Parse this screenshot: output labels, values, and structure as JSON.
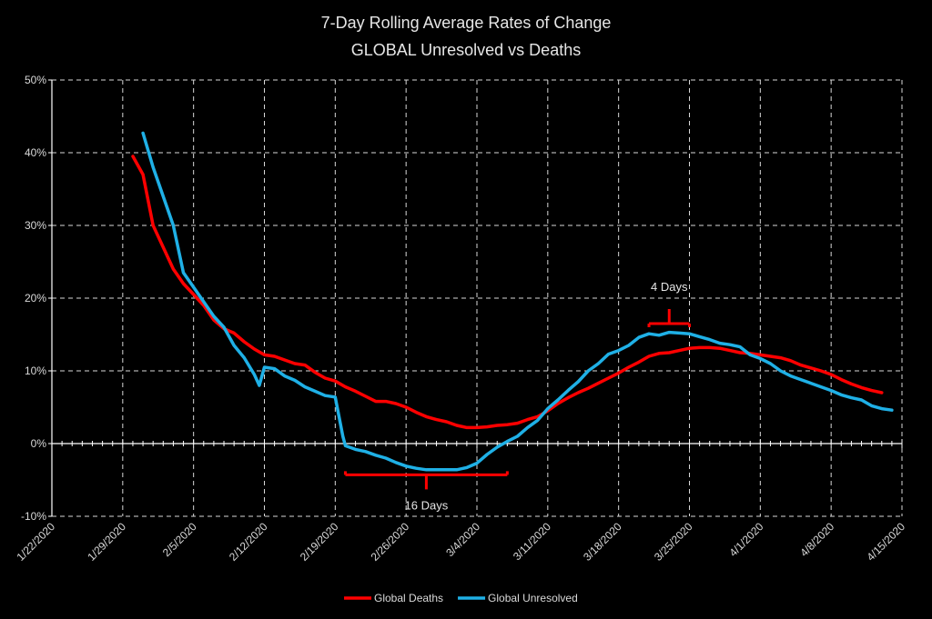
{
  "chart_data": {
    "type": "line",
    "title": "7-Day Rolling Average Rates of Change",
    "subtitle": "GLOBAL Unresolved vs Deaths",
    "xlabel": "",
    "ylabel": "",
    "x_ticks": [
      "1/22/2020",
      "1/29/2020",
      "2/5/2020",
      "2/12/2020",
      "2/19/2020",
      "2/26/2020",
      "3/4/2020",
      "3/11/2020",
      "3/18/2020",
      "3/25/2020",
      "4/1/2020",
      "4/8/2020",
      "4/15/2020"
    ],
    "y_ticks": [
      "-10%",
      "0%",
      "10%",
      "20%",
      "30%",
      "40%",
      "50%"
    ],
    "ylim": [
      -0.1,
      0.5
    ],
    "xlim": [
      "2020-01-22",
      "2020-04-15"
    ],
    "grid": true,
    "legend_position": "bottom",
    "series": [
      {
        "name": "Global Deaths",
        "color": "#ff0000",
        "points": [
          [
            "2020-01-30",
            0.395
          ],
          [
            "2020-01-31",
            0.37
          ],
          [
            "2020-02-01",
            0.3
          ],
          [
            "2020-02-02",
            0.27
          ],
          [
            "2020-02-03",
            0.24
          ],
          [
            "2020-02-04",
            0.22
          ],
          [
            "2020-02-05",
            0.205
          ],
          [
            "2020-02-06",
            0.19
          ],
          [
            "2020-02-07",
            0.17
          ],
          [
            "2020-02-08",
            0.158
          ],
          [
            "2020-02-09",
            0.152
          ],
          [
            "2020-02-10",
            0.14
          ],
          [
            "2020-02-11",
            0.13
          ],
          [
            "2020-02-12",
            0.122
          ],
          [
            "2020-02-13",
            0.12
          ],
          [
            "2020-02-14",
            0.115
          ],
          [
            "2020-02-15",
            0.11
          ],
          [
            "2020-02-16",
            0.108
          ],
          [
            "2020-02-17",
            0.098
          ],
          [
            "2020-02-18",
            0.09
          ],
          [
            "2020-02-19",
            0.086
          ],
          [
            "2020-02-20",
            0.078
          ],
          [
            "2020-02-21",
            0.072
          ],
          [
            "2020-02-22",
            0.065
          ],
          [
            "2020-02-23",
            0.058
          ],
          [
            "2020-02-24",
            0.058
          ],
          [
            "2020-02-25",
            0.055
          ],
          [
            "2020-02-26",
            0.05
          ],
          [
            "2020-02-27",
            0.043
          ],
          [
            "2020-02-28",
            0.037
          ],
          [
            "2020-02-29",
            0.033
          ],
          [
            "2020-03-01",
            0.03
          ],
          [
            "2020-03-02",
            0.025
          ],
          [
            "2020-03-03",
            0.022
          ],
          [
            "2020-03-04",
            0.022
          ],
          [
            "2020-03-05",
            0.023
          ],
          [
            "2020-03-06",
            0.025
          ],
          [
            "2020-03-07",
            0.026
          ],
          [
            "2020-03-08",
            0.028
          ],
          [
            "2020-03-09",
            0.033
          ],
          [
            "2020-03-10",
            0.037
          ],
          [
            "2020-03-11",
            0.045
          ],
          [
            "2020-03-12",
            0.055
          ],
          [
            "2020-03-13",
            0.063
          ],
          [
            "2020-03-14",
            0.07
          ],
          [
            "2020-03-15",
            0.076
          ],
          [
            "2020-03-16",
            0.083
          ],
          [
            "2020-03-17",
            0.09
          ],
          [
            "2020-03-18",
            0.097
          ],
          [
            "2020-03-19",
            0.105
          ],
          [
            "2020-03-20",
            0.112
          ],
          [
            "2020-03-21",
            0.12
          ],
          [
            "2020-03-22",
            0.124
          ],
          [
            "2020-03-23",
            0.125
          ],
          [
            "2020-03-24",
            0.128
          ],
          [
            "2020-03-25",
            0.131
          ],
          [
            "2020-03-26",
            0.132
          ],
          [
            "2020-03-27",
            0.132
          ],
          [
            "2020-03-28",
            0.131
          ],
          [
            "2020-03-29",
            0.128
          ],
          [
            "2020-03-30",
            0.125
          ],
          [
            "2020-03-31",
            0.124
          ],
          [
            "2020-04-01",
            0.122
          ],
          [
            "2020-04-02",
            0.12
          ],
          [
            "2020-04-03",
            0.118
          ],
          [
            "2020-04-04",
            0.114
          ],
          [
            "2020-04-05",
            0.108
          ],
          [
            "2020-04-06",
            0.104
          ],
          [
            "2020-04-07",
            0.1
          ],
          [
            "2020-04-08",
            0.095
          ],
          [
            "2020-04-09",
            0.088
          ],
          [
            "2020-04-10",
            0.082
          ],
          [
            "2020-04-11",
            0.077
          ],
          [
            "2020-04-12",
            0.073
          ],
          [
            "2020-04-13",
            0.07
          ]
        ]
      },
      {
        "name": "Global Unresolved",
        "color": "#1fb0e6",
        "points": [
          [
            "2020-01-31",
            0.427
          ],
          [
            "2020-02-01",
            0.38
          ],
          [
            "2020-02-02",
            0.34
          ],
          [
            "2020-02-03",
            0.3
          ],
          [
            "2020-02-04",
            0.235
          ],
          [
            "2020-02-05",
            0.215
          ],
          [
            "2020-02-06",
            0.195
          ],
          [
            "2020-02-07",
            0.175
          ],
          [
            "2020-02-08",
            0.16
          ],
          [
            "2020-02-09",
            0.135
          ],
          [
            "2020-02-10",
            0.118
          ],
          [
            "2020-02-11",
            0.095
          ],
          [
            "2020-02-11T12:00:00",
            0.08
          ],
          [
            "2020-02-12",
            0.105
          ],
          [
            "2020-02-13",
            0.103
          ],
          [
            "2020-02-14",
            0.093
          ],
          [
            "2020-02-15",
            0.087
          ],
          [
            "2020-02-16",
            0.078
          ],
          [
            "2020-02-17",
            0.072
          ],
          [
            "2020-02-18",
            0.066
          ],
          [
            "2020-02-19",
            0.064
          ],
          [
            "2020-02-19T18:00:00",
            0.01
          ],
          [
            "2020-02-20",
            -0.003
          ],
          [
            "2020-02-21",
            -0.008
          ],
          [
            "2020-02-22",
            -0.011
          ],
          [
            "2020-02-23",
            -0.016
          ],
          [
            "2020-02-24",
            -0.02
          ],
          [
            "2020-02-25",
            -0.026
          ],
          [
            "2020-02-26",
            -0.031
          ],
          [
            "2020-02-27",
            -0.034
          ],
          [
            "2020-02-28",
            -0.036
          ],
          [
            "2020-02-29",
            -0.036
          ],
          [
            "2020-03-01",
            -0.036
          ],
          [
            "2020-03-02",
            -0.036
          ],
          [
            "2020-03-03",
            -0.033
          ],
          [
            "2020-03-04",
            -0.027
          ],
          [
            "2020-03-05",
            -0.015
          ],
          [
            "2020-03-06",
            -0.005
          ],
          [
            "2020-03-07",
            0.003
          ],
          [
            "2020-03-08",
            0.01
          ],
          [
            "2020-03-09",
            0.022
          ],
          [
            "2020-03-10",
            0.032
          ],
          [
            "2020-03-11",
            0.048
          ],
          [
            "2020-03-12",
            0.06
          ],
          [
            "2020-03-13",
            0.073
          ],
          [
            "2020-03-14",
            0.085
          ],
          [
            "2020-03-15",
            0.1
          ],
          [
            "2020-03-16",
            0.11
          ],
          [
            "2020-03-17",
            0.123
          ],
          [
            "2020-03-18",
            0.128
          ],
          [
            "2020-03-19",
            0.135
          ],
          [
            "2020-03-20",
            0.146
          ],
          [
            "2020-03-21",
            0.151
          ],
          [
            "2020-03-22",
            0.149
          ],
          [
            "2020-03-23",
            0.153
          ],
          [
            "2020-03-24",
            0.152
          ],
          [
            "2020-03-25",
            0.151
          ],
          [
            "2020-03-26",
            0.147
          ],
          [
            "2020-03-27",
            0.143
          ],
          [
            "2020-03-28",
            0.138
          ],
          [
            "2020-03-29",
            0.136
          ],
          [
            "2020-03-30",
            0.133
          ],
          [
            "2020-03-31",
            0.122
          ],
          [
            "2020-04-01",
            0.117
          ],
          [
            "2020-04-02",
            0.11
          ],
          [
            "2020-04-03",
            0.1
          ],
          [
            "2020-04-04",
            0.093
          ],
          [
            "2020-04-05",
            0.088
          ],
          [
            "2020-04-06",
            0.083
          ],
          [
            "2020-04-07",
            0.078
          ],
          [
            "2020-04-08",
            0.073
          ],
          [
            "2020-04-09",
            0.067
          ],
          [
            "2020-04-10",
            0.063
          ],
          [
            "2020-04-11",
            0.06
          ],
          [
            "2020-04-12",
            0.052
          ],
          [
            "2020-04-13",
            0.048
          ],
          [
            "2020-04-14",
            0.046
          ]
        ]
      }
    ],
    "annotations": [
      {
        "text": "16 Days",
        "bracket_x": [
          "2020-02-20",
          "2020-03-07"
        ],
        "bracket_y": -0.043,
        "orientation": "down"
      },
      {
        "text": "4 Days",
        "bracket_x": [
          "2020-03-21",
          "2020-03-25"
        ],
        "bracket_y": 0.165,
        "orientation": "up"
      }
    ]
  }
}
